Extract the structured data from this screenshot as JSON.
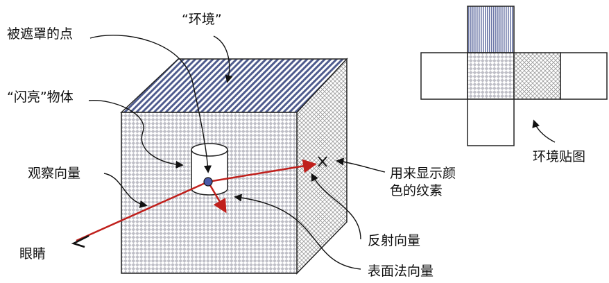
{
  "labels": {
    "occluded_point": "被遮罩的点",
    "environment": "“环境”",
    "shiny_object": "“闪亮”物体",
    "view_vector": "观察向量",
    "eye": "眼睛",
    "texture_display_line1": "用来显示颜",
    "texture_display_line2": "色的纹素",
    "reflection_vector": "反射向量",
    "surface_normal": "表面法向量",
    "environment_map": "环境贴图"
  },
  "colors": {
    "vector_red": "#c0201c",
    "point_blue": "#4a5aa8",
    "stripe_blue": "#4f5c8e",
    "checker_gray": "#bfbfc7",
    "crosshatch_gray": "#9a9a9a"
  }
}
